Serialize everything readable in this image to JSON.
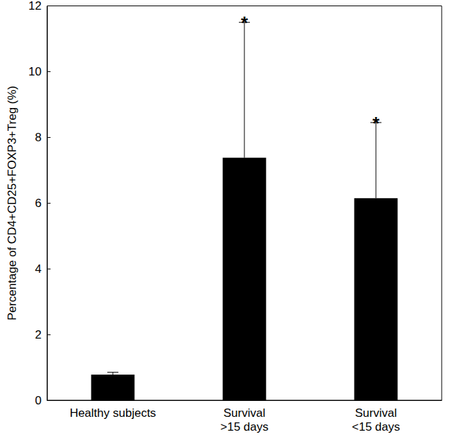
{
  "chart_data": {
    "type": "bar",
    "y_label": "Percentage of CD4+CD25+FOXP3+Treg (%)",
    "categories": [
      "Healthy subjects",
      "Survival\n>15 days",
      "Survival\n<15 days"
    ],
    "values": [
      0.78,
      7.38,
      6.15
    ],
    "errors": [
      0.07,
      4.12,
      2.3
    ],
    "annotations": [
      null,
      "*",
      "*"
    ],
    "color": "#000000",
    "ylim": [
      0,
      12
    ],
    "yticks": [
      0,
      2,
      4,
      6,
      8,
      10,
      12
    ],
    "grid": false
  }
}
